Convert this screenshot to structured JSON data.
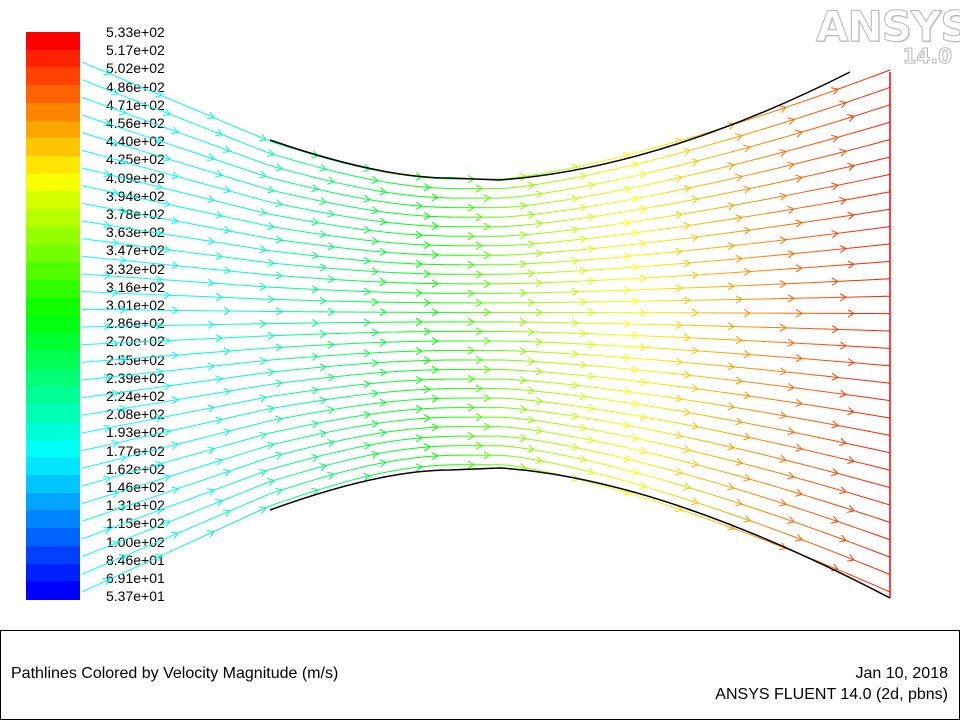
{
  "legend": {
    "labels": [
      "5.33e+02",
      "5.17e+02",
      "5.02e+02",
      "4.86e+02",
      "4.71e+02",
      "4.56e+02",
      "4.40e+02",
      "4.25e+02",
      "4.09e+02",
      "3.94e+02",
      "3.78e+02",
      "3.63e+02",
      "3.47e+02",
      "3.32e+02",
      "3.16e+02",
      "3.01e+02",
      "2.86e+02",
      "2.70e+02",
      "2.55e+02",
      "2.39e+02",
      "2.24e+02",
      "2.08e+02",
      "1.93e+02",
      "1.77e+02",
      "1.62e+02",
      "1.46e+02",
      "1.31e+02",
      "1.15e+02",
      "1.00e+02",
      "8.46e+01",
      "6.91e+01",
      "5.37e+01"
    ],
    "min_value": 53.7,
    "max_value": 533,
    "unit": "m/s"
  },
  "logo": {
    "brand": "ANSYS",
    "version": "14.0"
  },
  "caption": {
    "title": "Pathlines Colored by Velocity Magnitude (m/s)",
    "date": "Jan 10, 2018",
    "product": "ANSYS FLUENT 14.0 (2d, pbns)"
  },
  "colors": {
    "outlet_line": "#ff0000",
    "wall_line": "#000000"
  }
}
